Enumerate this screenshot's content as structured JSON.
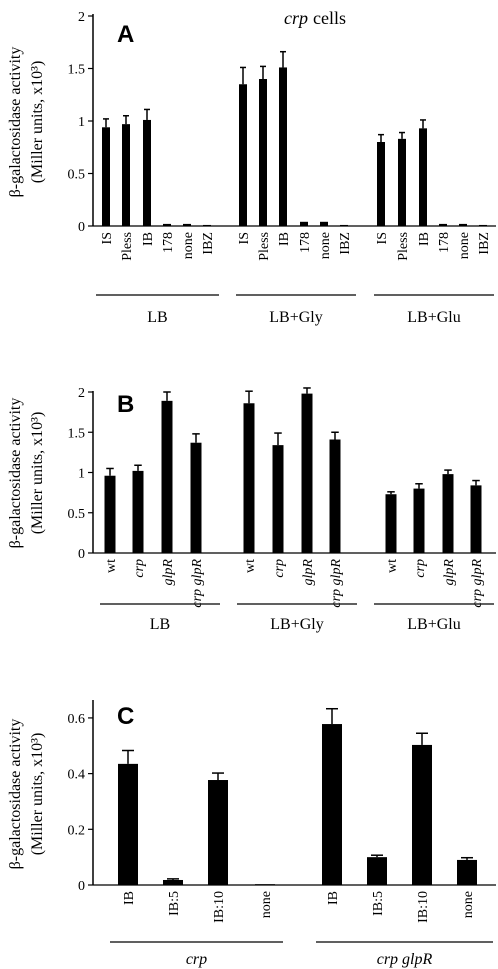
{
  "figure_title": {
    "italic_part": "crp",
    "rest": "cells"
  },
  "chart_data": [
    {
      "panel": "A",
      "type": "bar",
      "ylabel_line1": "β-galactosidase activity",
      "ylabel_line2": "(Miller units, x10³)",
      "ylim": [
        0,
        2
      ],
      "yticks": [
        0,
        0.5,
        1,
        1.5,
        2
      ],
      "ytick_labels": [
        "0",
        "0.5",
        "1",
        "1.5",
        "2"
      ],
      "groups": [
        {
          "name": "LB",
          "italic": false,
          "categories": [
            "IS",
            "Pless",
            "IB",
            "178",
            "none",
            "IBZ"
          ],
          "values": [
            0.94,
            0.97,
            1.01,
            0.02,
            0.02,
            0.01
          ],
          "errors": [
            0.08,
            0.08,
            0.1,
            0.0,
            0.0,
            0.0
          ]
        },
        {
          "name": "LB+Gly",
          "italic": false,
          "categories": [
            "IS",
            "Pless",
            "IB",
            "178",
            "none",
            "IBZ"
          ],
          "values": [
            1.35,
            1.4,
            1.51,
            0.04,
            0.04,
            0.01
          ],
          "errors": [
            0.16,
            0.12,
            0.15,
            0.0,
            0.0,
            0.0
          ]
        },
        {
          "name": "LB+Glu",
          "italic": false,
          "categories": [
            "IS",
            "Pless",
            "IB",
            "178",
            "none",
            "IBZ"
          ],
          "values": [
            0.8,
            0.83,
            0.93,
            0.02,
            0.02,
            0.01
          ],
          "errors": [
            0.07,
            0.06,
            0.08,
            0.0,
            0.0,
            0.0
          ]
        }
      ],
      "category_italic": false
    },
    {
      "panel": "B",
      "type": "bar",
      "ylabel_line1": "β-galactosidase activity",
      "ylabel_line2": "(Miller units, x10³)",
      "ylim": [
        0,
        2
      ],
      "yticks": [
        0,
        0.5,
        1,
        1.5,
        2
      ],
      "ytick_labels": [
        "0",
        "0.5",
        "1",
        "1.5",
        "2"
      ],
      "groups": [
        {
          "name": "LB",
          "italic": false,
          "categories": [
            "wt",
            "crp",
            "glpR",
            "crp glpR"
          ],
          "values": [
            0.96,
            1.02,
            1.89,
            1.37
          ],
          "errors": [
            0.09,
            0.07,
            0.11,
            0.11
          ]
        },
        {
          "name": "LB+Gly",
          "italic": false,
          "categories": [
            "wt",
            "crp",
            "glpR",
            "crp glpR"
          ],
          "values": [
            1.86,
            1.34,
            1.98,
            1.41
          ],
          "errors": [
            0.15,
            0.15,
            0.07,
            0.09
          ]
        },
        {
          "name": "LB+Glu",
          "italic": false,
          "categories": [
            "wt",
            "crp",
            "glpR",
            "crp glpR"
          ],
          "values": [
            0.73,
            0.8,
            0.98,
            0.84
          ],
          "errors": [
            0.03,
            0.06,
            0.05,
            0.06
          ]
        }
      ],
      "category_italic_flags": [
        false,
        true,
        true,
        true
      ]
    },
    {
      "panel": "C",
      "type": "bar",
      "ylabel_line1": "β-galactosidase activity",
      "ylabel_line2": "(Miller units, x10³)",
      "ylim": [
        0,
        0.65
      ],
      "yticks": [
        0,
        0.2,
        0.4,
        0.6
      ],
      "ytick_labels": [
        "0",
        "0.2",
        "0.4",
        "0.6"
      ],
      "groups": [
        {
          "name": "crp",
          "italic": true,
          "categories": [
            "IB",
            "IB:5",
            "IB:10",
            "none"
          ],
          "values": [
            0.435,
            0.018,
            0.377,
            0.003
          ],
          "errors": [
            0.048,
            0.004,
            0.025,
            0.0
          ]
        },
        {
          "name": "crp glpR",
          "italic": true,
          "categories": [
            "IB",
            "IB:5",
            "IB:10",
            "none"
          ],
          "values": [
            0.578,
            0.1,
            0.503,
            0.09
          ],
          "errors": [
            0.055,
            0.007,
            0.042,
            0.008
          ]
        }
      ],
      "category_italic": false
    }
  ]
}
